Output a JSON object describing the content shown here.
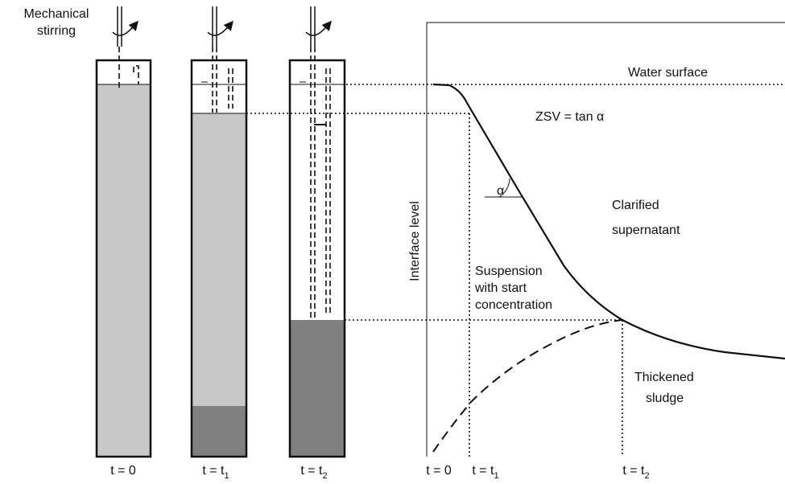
{
  "stirring_label": [
    "Mechanical",
    "stirring"
  ],
  "columns": [
    {
      "label": {
        "main": "t = 0"
      }
    },
    {
      "label": {
        "main": "t = t",
        "sub": "1"
      }
    },
    {
      "label": {
        "main": "t = t",
        "sub": "2"
      }
    }
  ],
  "graph": {
    "water_surface": "Water surface",
    "zsv": "ZSV = tan α",
    "angle": "α",
    "y_axis": "Interface level",
    "clarified": [
      "Clarified",
      "supernatant"
    ],
    "suspension": [
      "Suspension",
      "with start",
      "concentration"
    ],
    "thickened": [
      "Thickened",
      "sludge"
    ],
    "x_labels": [
      {
        "main": "t = 0"
      },
      {
        "main": "t = t",
        "sub": "1"
      },
      {
        "main": "t = t",
        "sub": "2"
      }
    ]
  }
}
